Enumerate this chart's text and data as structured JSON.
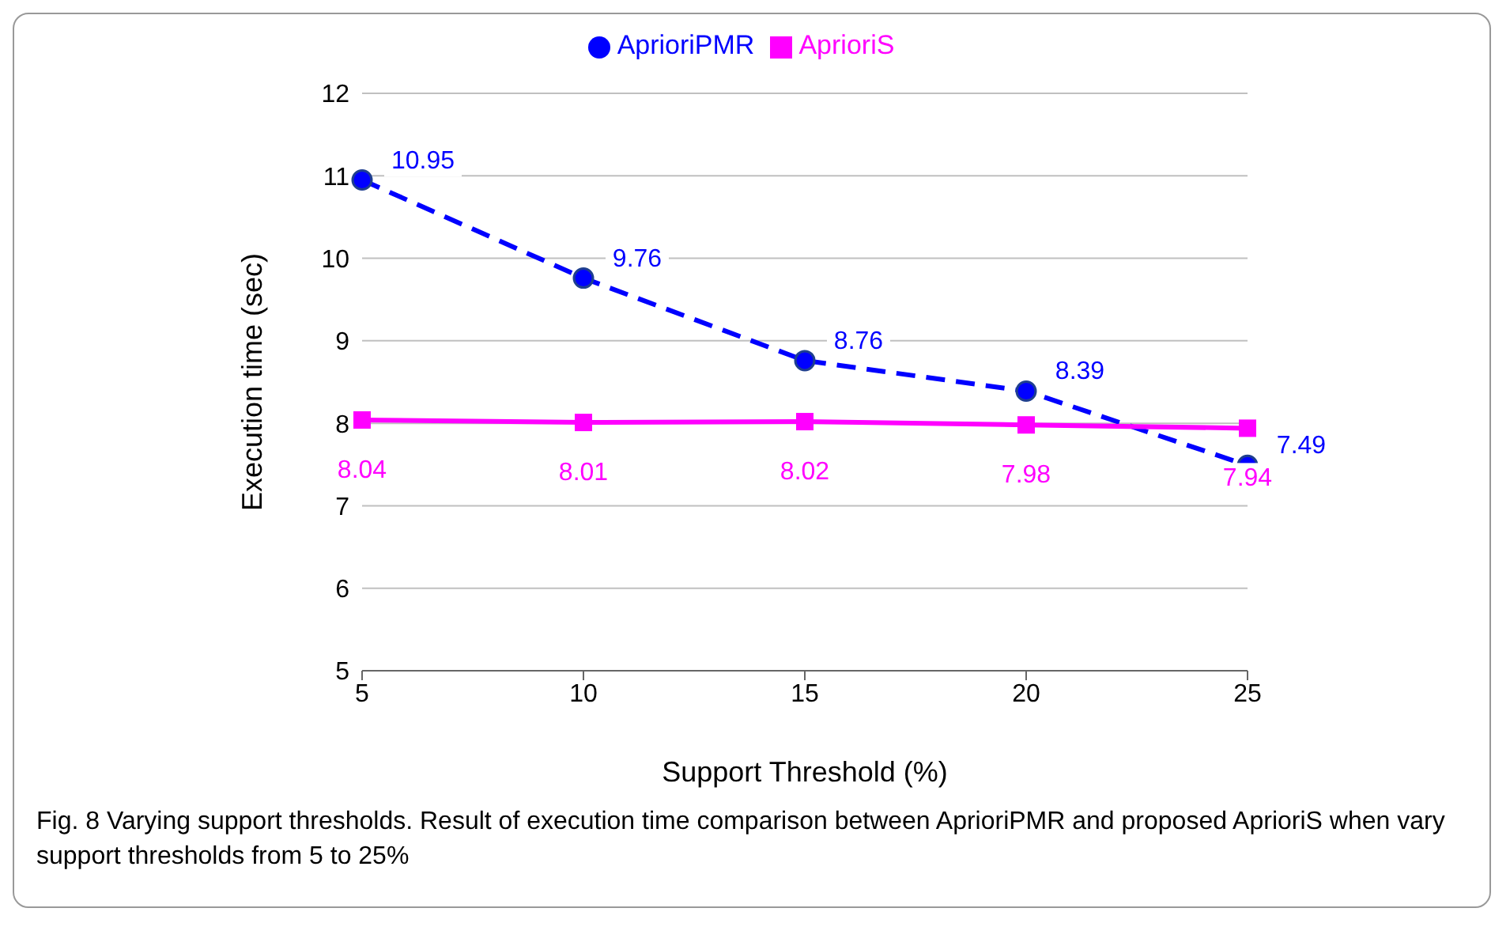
{
  "chart_data": {
    "type": "line",
    "categories": [
      "5",
      "10",
      "15",
      "20",
      "25"
    ],
    "series": [
      {
        "name": "AprioriPMR",
        "color": "#0000ff",
        "values": [
          10.95,
          9.76,
          8.76,
          8.39,
          7.49
        ],
        "marker": "circle",
        "line_style": "dashed"
      },
      {
        "name": "AprioriS",
        "color": "#ff00ff",
        "values": [
          8.04,
          8.01,
          8.02,
          7.98,
          7.94
        ],
        "marker": "square",
        "line_style": "solid"
      }
    ],
    "xlabel": "Support Threshold (%)",
    "ylabel": "Execution time (sec)",
    "ylim": [
      5,
      12
    ],
    "yticks": [
      5,
      6,
      7,
      8,
      9,
      10,
      11,
      12
    ],
    "grid": "y",
    "legend": "top",
    "data_labels": true,
    "annotations": [
      "Fig. 8 Varying support thresholds. Result of execution time comparison between AprioriPMR and proposed AprioriS when vary support thresholds from 5 to 25%"
    ]
  }
}
